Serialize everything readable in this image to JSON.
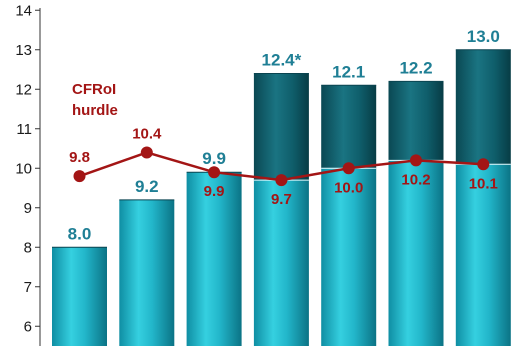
{
  "chart_data": {
    "type": "bar",
    "categories": [
      "",
      "",
      "",
      "",
      "",
      "",
      ""
    ],
    "series": [
      {
        "values": [
          8.0,
          9.2,
          9.9,
          12.4,
          12.1,
          12.2,
          13.0
        ],
        "labels": [
          "8.0",
          "9.2",
          "9.9",
          "12.4*",
          "12.1",
          "12.2",
          "13.0"
        ],
        "color": "#1fb3c9",
        "top_color": "#0d5a66"
      },
      {
        "type": "line",
        "values": [
          9.8,
          10.4,
          9.9,
          9.7,
          10.0,
          10.2,
          10.1
        ],
        "labels": [
          "9.8",
          "10.4",
          "9.9",
          "9.7",
          "10.0",
          "10.2",
          "10.1"
        ],
        "color": "#a31515"
      }
    ],
    "annotation": [
      "CFRoI",
      "hurdle"
    ],
    "y_ticks": [
      "6",
      "7",
      "8",
      "9",
      "10",
      "11",
      "12",
      "13",
      "14"
    ],
    "ylim": [
      5.5,
      14
    ],
    "grid": false
  }
}
